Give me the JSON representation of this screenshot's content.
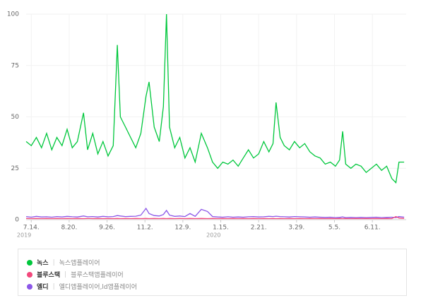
{
  "chart_data": {
    "type": "line",
    "x": [
      "2019-07-09",
      "2019-07-14",
      "2019-07-19",
      "2019-07-24",
      "2019-07-29",
      "2019-08-03",
      "2019-08-08",
      "2019-08-13",
      "2019-08-18",
      "2019-08-23",
      "2019-08-28",
      "2019-09-03",
      "2019-09-07",
      "2019-09-12",
      "2019-09-17",
      "2019-09-22",
      "2019-09-27",
      "2019-10-02",
      "2019-10-06",
      "2019-10-09",
      "2019-10-14",
      "2019-10-19",
      "2019-10-24",
      "2019-10-29",
      "2019-11-03",
      "2019-11-06",
      "2019-11-11",
      "2019-11-16",
      "2019-11-20",
      "2019-11-23",
      "2019-11-26",
      "2019-12-01",
      "2019-12-06",
      "2019-12-11",
      "2019-12-16",
      "2019-12-21",
      "2019-12-27",
      "2020-01-02",
      "2020-01-07",
      "2020-01-12",
      "2020-01-17",
      "2020-01-22",
      "2020-01-27",
      "2020-02-01",
      "2020-02-06",
      "2020-02-11",
      "2020-02-16",
      "2020-02-21",
      "2020-02-26",
      "2020-03-02",
      "2020-03-06",
      "2020-03-09",
      "2020-03-13",
      "2020-03-17",
      "2020-03-22",
      "2020-03-27",
      "2020-04-01",
      "2020-04-06",
      "2020-04-11",
      "2020-04-16",
      "2020-04-21",
      "2020-04-26",
      "2020-05-01",
      "2020-05-06",
      "2020-05-10",
      "2020-05-13",
      "2020-05-16",
      "2020-05-21",
      "2020-05-26",
      "2020-05-31",
      "2020-06-05",
      "2020-06-10",
      "2020-06-15",
      "2020-06-20",
      "2020-06-25",
      "2020-06-30",
      "2020-07-04",
      "2020-07-07",
      "2020-07-12"
    ],
    "series": [
      {
        "name": "녹스",
        "keywords": "녹스앱플레이어",
        "color": "#00c73c",
        "values": [
          38,
          36,
          40,
          35,
          42,
          34,
          40,
          36,
          44,
          35,
          38,
          52,
          34,
          42,
          32,
          38,
          31,
          36,
          85,
          50,
          45,
          40,
          35,
          42,
          60,
          67,
          45,
          38,
          55,
          100,
          45,
          35,
          40,
          30,
          35,
          28,
          42,
          35,
          28,
          25,
          28,
          27,
          29,
          26,
          30,
          34,
          30,
          32,
          38,
          33,
          37,
          57,
          40,
          36,
          34,
          38,
          35,
          37,
          33,
          31,
          30,
          27,
          28,
          26,
          29,
          43,
          27,
          25,
          27,
          26,
          23,
          25,
          27,
          24,
          26,
          20,
          18,
          28,
          28
        ]
      },
      {
        "name": "블루스택",
        "keywords": "블루스택앱플레이어",
        "color": "#f2487c",
        "values": [
          0.6,
          0.5,
          0.6,
          0.5,
          0.6,
          0.5,
          0.6,
          0.5,
          0.6,
          0.5,
          0.6,
          0.5,
          0.6,
          0.5,
          0.6,
          0.5,
          0.6,
          0.5,
          0.6,
          0.5,
          0.6,
          0.5,
          0.6,
          0.5,
          0.6,
          0.5,
          0.6,
          0.5,
          0.6,
          0.5,
          0.6,
          0.5,
          0.6,
          0.5,
          0.6,
          0.5,
          0.6,
          0.5,
          0.6,
          0.5,
          0.6,
          0.5,
          0.6,
          0.5,
          0.6,
          0.5,
          0.6,
          0.5,
          0.6,
          0.5,
          0.6,
          0.5,
          0.6,
          0.5,
          0.6,
          0.5,
          0.6,
          0.5,
          0.6,
          0.5,
          0.6,
          0.5,
          0.6,
          0.5,
          0.6,
          0.5,
          0.6,
          0.5,
          0.6,
          0.5,
          0.6,
          0.5,
          0.6,
          0.5,
          0.6,
          0.5,
          1.5,
          0.8,
          0.6
        ]
      },
      {
        "name": "엘디",
        "keywords": "엘디앱플레이어,ld앱플레이어",
        "color": "#8c57e8",
        "values": [
          1.5,
          1.2,
          1.6,
          1.3,
          1.4,
          1.2,
          1.5,
          1.3,
          1.6,
          1.4,
          1.3,
          1.8,
          1.4,
          1.5,
          1.3,
          1.6,
          1.4,
          1.5,
          2.0,
          1.8,
          1.5,
          1.6,
          1.7,
          2.2,
          5.5,
          3.0,
          2.0,
          1.8,
          2.5,
          4.5,
          2.2,
          1.6,
          1.8,
          1.5,
          3.0,
          1.6,
          5.0,
          4.0,
          1.5,
          1.3,
          1.2,
          1.4,
          1.2,
          1.3,
          1.2,
          1.4,
          1.5,
          1.3,
          1.4,
          1.6,
          1.5,
          1.7,
          1.5,
          1.4,
          1.3,
          1.5,
          1.4,
          1.3,
          1.2,
          1.3,
          1.2,
          1.1,
          1.2,
          1.0,
          1.1,
          1.3,
          1.0,
          1.1,
          1.0,
          1.1,
          1.0,
          1.1,
          1.2,
          1.0,
          1.1,
          1.2,
          1.0,
          1.5,
          1.2
        ]
      }
    ],
    "xlim": [
      "2019-07-09",
      "2020-07-14"
    ],
    "xticks": [
      {
        "value": "2019-07-14",
        "label": "7.14."
      },
      {
        "value": "2019-08-20",
        "label": "8.20."
      },
      {
        "value": "2019-09-26",
        "label": "9.26."
      },
      {
        "value": "2019-11-02",
        "label": "11.2."
      },
      {
        "value": "2019-12-09",
        "label": "12.9."
      },
      {
        "value": "2020-01-15",
        "label": "1.15."
      },
      {
        "value": "2020-02-21",
        "label": "2.21."
      },
      {
        "value": "2020-03-29",
        "label": "3.29."
      },
      {
        "value": "2020-05-05",
        "label": "5.5."
      },
      {
        "value": "2020-06-11",
        "label": "6.11."
      }
    ],
    "annotations": [
      {
        "text": "2019",
        "x": "2019-07-14"
      },
      {
        "text": "2020",
        "x": "2020-01-15"
      }
    ],
    "ylim": [
      0,
      100
    ],
    "yticks": [
      0,
      25,
      50,
      75,
      100
    ],
    "grid": true
  }
}
